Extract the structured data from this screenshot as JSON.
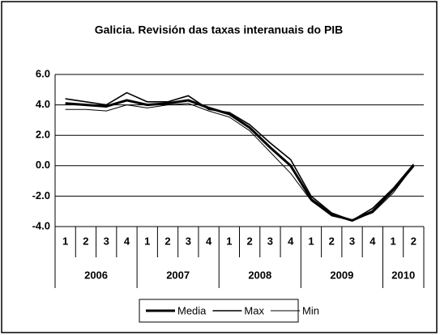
{
  "chart_data": {
    "type": "line",
    "title": "Galicia. Revisión das taxas interanuais do PIB",
    "categories": [
      "1",
      "2",
      "3",
      "4",
      "1",
      "2",
      "3",
      "4",
      "1",
      "2",
      "3",
      "4",
      "1",
      "2",
      "3",
      "4",
      "1",
      "2"
    ],
    "category_groups": [
      {
        "label": "2006",
        "size": 4
      },
      {
        "label": "2007",
        "size": 4
      },
      {
        "label": "2008",
        "size": 4
      },
      {
        "label": "2009",
        "size": 4
      },
      {
        "label": "2010",
        "size": 2
      }
    ],
    "series": [
      {
        "name": "Media",
        "color": "#000000",
        "line_width": 3,
        "values": [
          4.1,
          4.0,
          3.9,
          4.3,
          4.0,
          4.1,
          4.3,
          3.8,
          3.4,
          2.5,
          1.2,
          0.0,
          -2.2,
          -3.2,
          -3.6,
          -3.0,
          -1.6,
          0.0
        ]
      },
      {
        "name": "Max",
        "color": "#000000",
        "line_width": 1.6,
        "values": [
          4.4,
          4.2,
          4.0,
          4.8,
          4.2,
          4.2,
          4.6,
          3.7,
          3.5,
          2.7,
          1.5,
          0.4,
          -2.0,
          -3.1,
          -3.6,
          -2.8,
          -1.5,
          0.1
        ]
      },
      {
        "name": "Min",
        "color": "#000000",
        "line_width": 1,
        "values": [
          3.7,
          3.7,
          3.6,
          4.0,
          3.8,
          4.0,
          4.1,
          3.6,
          3.2,
          2.3,
          0.9,
          -0.5,
          -2.3,
          -3.3,
          -3.6,
          -3.1,
          -1.8,
          0.0
        ]
      }
    ],
    "ylim": [
      -4,
      6
    ],
    "yticks": [
      {
        "value": -4,
        "label": "-4.0"
      },
      {
        "value": -2,
        "label": "-2.0"
      },
      {
        "value": 0,
        "label": "0.0"
      },
      {
        "value": 2,
        "label": "2.0"
      },
      {
        "value": 4,
        "label": "4.0"
      },
      {
        "value": 6,
        "label": "6.0"
      }
    ],
    "grid": true,
    "legend": "bottom"
  }
}
